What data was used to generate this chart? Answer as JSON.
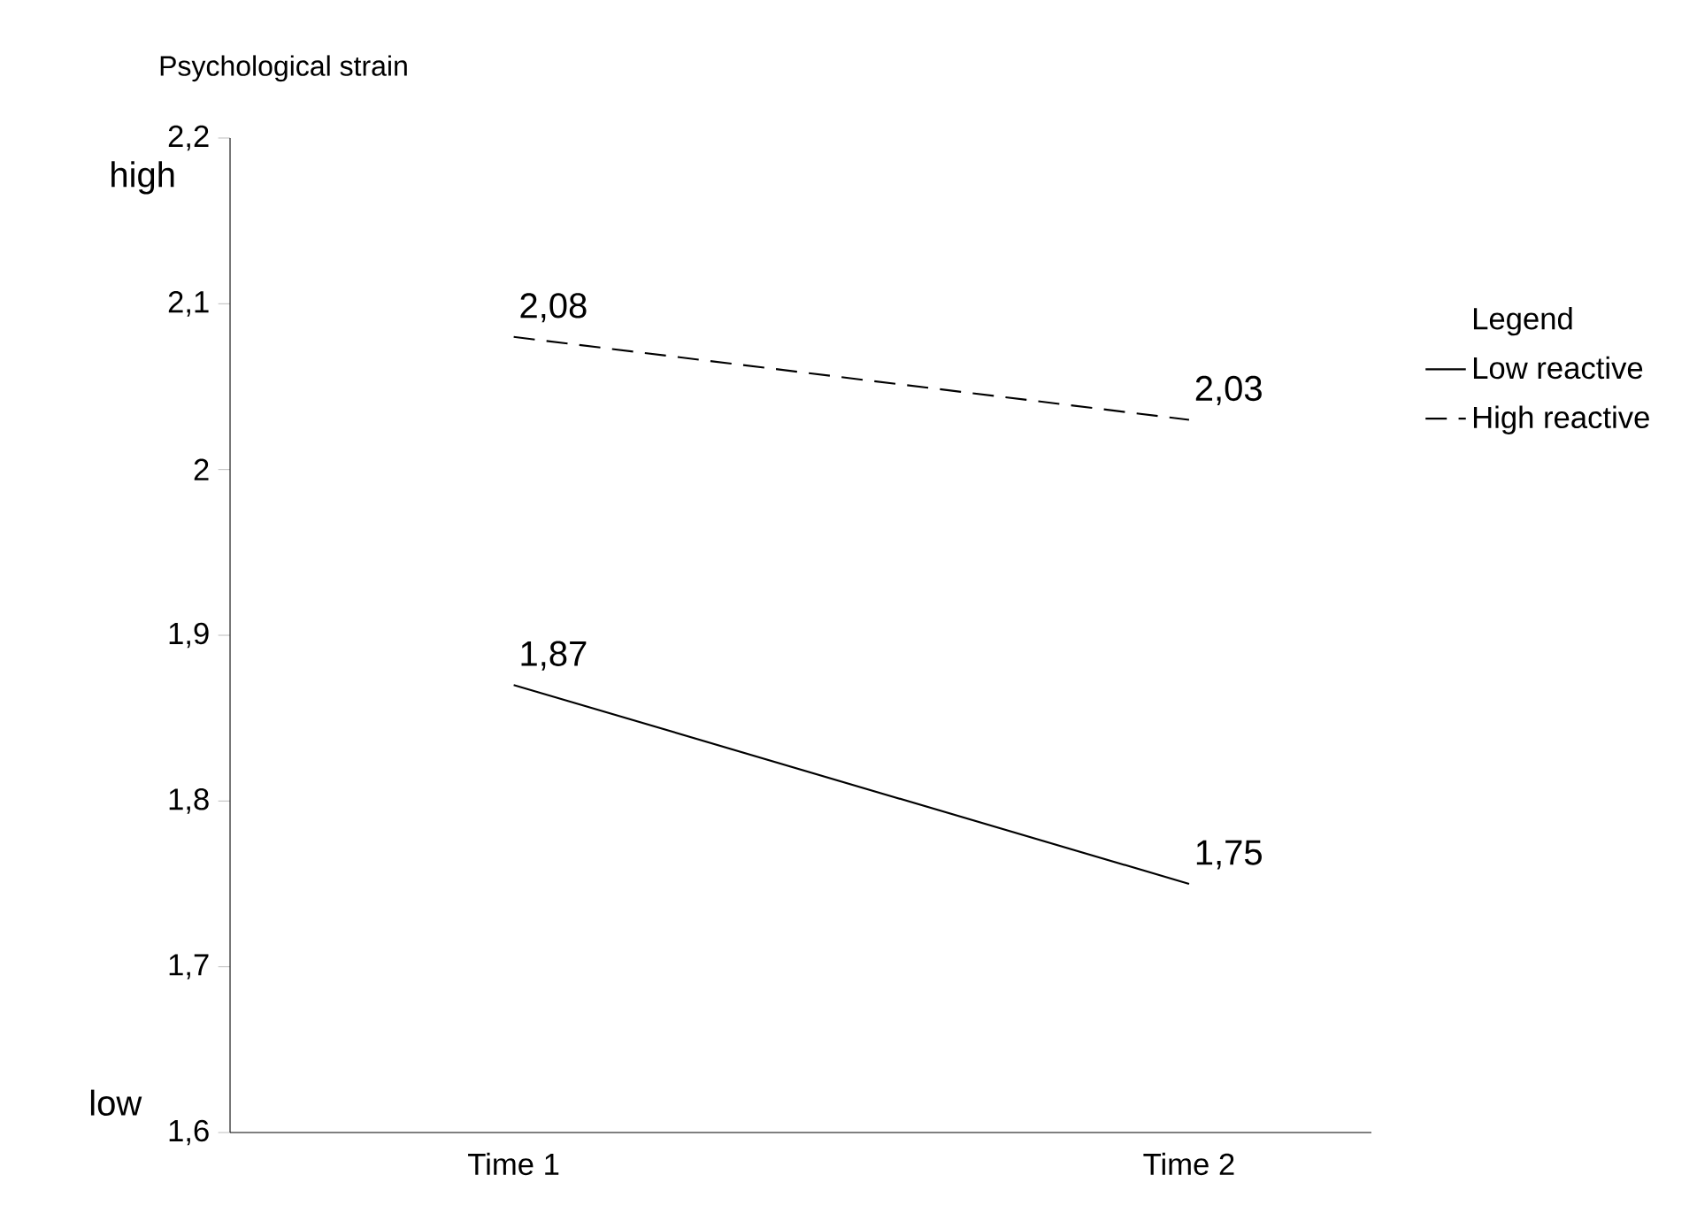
{
  "chart_data": {
    "type": "line",
    "ylabel": "Psychological strain",
    "legend_title": "Legend",
    "legend": "right",
    "marker": "none",
    "categories": [
      "Time 1",
      "Time 2"
    ],
    "ylim": [
      1.6,
      2.2
    ],
    "yticks": [
      {
        "value": 1.6,
        "label": "1,6"
      },
      {
        "value": 1.7,
        "label": "1,7"
      },
      {
        "value": 1.8,
        "label": "1,8"
      },
      {
        "value": 1.9,
        "label": "1,9"
      },
      2,
      {
        "value": 2.1,
        "label": "2,1"
      },
      {
        "value": 2.2,
        "label": "2,2"
      }
    ],
    "series": [
      {
        "name": "Low reactive",
        "color": "#000000",
        "line_style": "solid",
        "values": [
          1.87,
          1.75
        ],
        "value_labels": [
          "1,87",
          "1,75"
        ]
      },
      {
        "name": "High reactive",
        "color": "#000000",
        "line_style": "dashed",
        "values": [
          2.08,
          2.03
        ],
        "value_labels": [
          "2,08",
          "2,03"
        ]
      }
    ],
    "annotations": [
      "high",
      "low"
    ]
  }
}
